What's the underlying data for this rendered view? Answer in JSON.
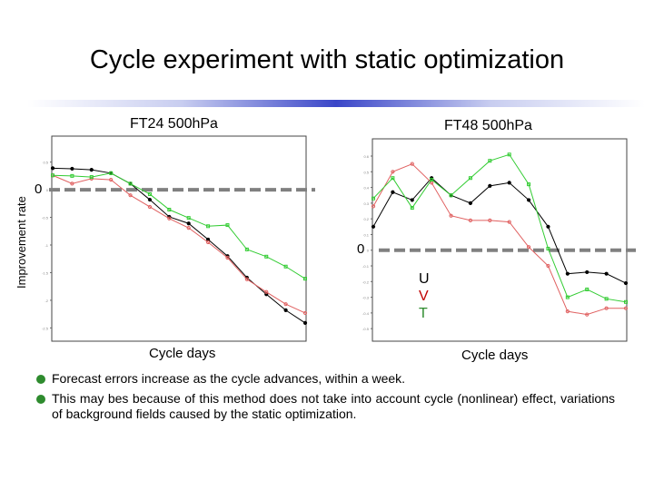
{
  "title": "Cycle experiment with static optimization",
  "bullets": [
    "Forecast errors increase as the cycle advances, within a week.",
    "This may bes because of this method does not take into account cycle (nonlinear) effect, variations of background fields caused by the static optimization."
  ],
  "legend": {
    "u": "U",
    "v": "V",
    "t": "T"
  },
  "colors": {
    "U": "#000000",
    "V": "#e06060",
    "T": "#33cc33",
    "zero_line": "#808080"
  },
  "chart_data": [
    {
      "type": "line",
      "title": "FT24 500hPa",
      "xlabel": "Cycle days",
      "ylabel": "Improvement rate",
      "zero_label": "0",
      "ylim": [
        -2.74,
        0.97
      ],
      "yticks": [
        0.5,
        0,
        -0.5,
        -1,
        -1.5,
        -2,
        -2.5
      ],
      "series": [
        {
          "name": "U",
          "values": [
            0.39,
            0.38,
            0.36,
            0.3,
            0.11,
            -0.18,
            -0.49,
            -0.61,
            -0.9,
            -1.2,
            -1.59,
            -1.89,
            -2.18,
            -2.41
          ]
        },
        {
          "name": "V",
          "values": [
            0.26,
            0.11,
            0.2,
            0.18,
            -0.1,
            -0.31,
            -0.52,
            -0.69,
            -0.95,
            -1.23,
            -1.62,
            -1.85,
            -2.07,
            -2.23
          ]
        },
        {
          "name": "T",
          "values": [
            0.26,
            0.25,
            0.23,
            0.3,
            0.11,
            -0.08,
            -0.36,
            -0.51,
            -0.66,
            -0.64,
            -1.08,
            -1.21,
            -1.39,
            -1.61
          ]
        }
      ]
    },
    {
      "type": "line",
      "title": "FT48 500hPa",
      "xlabel": "Cycle days",
      "zero_label": "0",
      "ylim": [
        -0.58,
        0.71
      ],
      "yticks": [
        0.6,
        0.5,
        0.4,
        0.3,
        0.2,
        0.1,
        0,
        -0.1,
        -0.2,
        -0.3,
        -0.4,
        -0.5
      ],
      "series": [
        {
          "name": "U",
          "values": [
            0.15,
            0.37,
            0.32,
            0.46,
            0.35,
            0.3,
            0.41,
            0.43,
            0.32,
            0.15,
            -0.15,
            -0.14,
            -0.15,
            -0.21
          ]
        },
        {
          "name": "V",
          "values": [
            0.28,
            0.5,
            0.55,
            0.43,
            0.22,
            0.19,
            0.19,
            0.18,
            0.02,
            -0.1,
            -0.39,
            -0.41,
            -0.37,
            -0.37
          ]
        },
        {
          "name": "T",
          "values": [
            0.33,
            0.46,
            0.27,
            0.45,
            0.35,
            0.46,
            0.57,
            0.61,
            0.42,
            0.01,
            -0.3,
            -0.25,
            -0.31,
            -0.33
          ]
        }
      ]
    }
  ]
}
